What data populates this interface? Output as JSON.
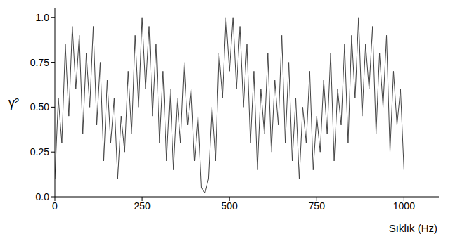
{
  "chart_data": {
    "type": "line",
    "x_label": "Sıklık (Hz)",
    "y_label": "γ²",
    "x": [
      0,
      10,
      20,
      30,
      40,
      50,
      60,
      70,
      80,
      90,
      100,
      110,
      120,
      130,
      140,
      150,
      160,
      170,
      180,
      190,
      200,
      210,
      220,
      230,
      240,
      250,
      260,
      270,
      280,
      290,
      300,
      310,
      320,
      330,
      340,
      350,
      360,
      370,
      380,
      390,
      400,
      410,
      420,
      430,
      440,
      450,
      460,
      470,
      480,
      490,
      500,
      510,
      520,
      530,
      540,
      550,
      560,
      570,
      580,
      590,
      600,
      610,
      620,
      630,
      640,
      650,
      660,
      670,
      680,
      690,
      700,
      710,
      720,
      730,
      740,
      750,
      760,
      770,
      780,
      790,
      800,
      810,
      820,
      830,
      840,
      850,
      860,
      870,
      880,
      890,
      900,
      910,
      920,
      930,
      940,
      950,
      960,
      970,
      980,
      990,
      1000
    ],
    "values": [
      0.1,
      0.55,
      0.3,
      0.85,
      0.45,
      0.95,
      0.6,
      0.9,
      0.35,
      0.8,
      0.5,
      0.95,
      0.4,
      0.75,
      0.2,
      0.65,
      0.3,
      0.55,
      0.1,
      0.45,
      0.25,
      0.7,
      0.35,
      0.9,
      0.5,
      1.0,
      0.6,
      0.95,
      0.45,
      0.85,
      0.3,
      0.7,
      0.2,
      0.6,
      0.15,
      0.55,
      0.3,
      0.75,
      0.4,
      0.6,
      0.2,
      0.45,
      0.05,
      0.02,
      0.1,
      0.5,
      0.2,
      0.8,
      0.55,
      1.0,
      0.7,
      1.0,
      0.6,
      0.95,
      0.5,
      0.85,
      0.3,
      0.7,
      0.15,
      0.6,
      0.35,
      0.8,
      0.25,
      0.65,
      0.4,
      0.9,
      0.3,
      0.75,
      0.2,
      0.55,
      0.1,
      0.5,
      0.3,
      0.7,
      0.15,
      0.45,
      0.25,
      0.65,
      0.35,
      0.8,
      0.2,
      0.6,
      0.4,
      0.85,
      0.3,
      0.9,
      0.55,
      1.0,
      0.45,
      0.85,
      0.6,
      0.95,
      0.35,
      0.8,
      0.5,
      0.9,
      0.25,
      0.7,
      0.4,
      0.6,
      0.15
    ],
    "color": "#444444",
    "xlim": [
      0,
      1100
    ],
    "xticks": [
      0,
      250,
      500,
      750,
      1000
    ],
    "ylim": [
      0,
      1.05
    ],
    "yticks": [
      {
        "value": 0,
        "label": "0.0"
      },
      0.25,
      {
        "value": 0.5,
        "label": "0.50"
      },
      0.75,
      {
        "value": 1,
        "label": "1.0"
      }
    ],
    "grid": false
  }
}
